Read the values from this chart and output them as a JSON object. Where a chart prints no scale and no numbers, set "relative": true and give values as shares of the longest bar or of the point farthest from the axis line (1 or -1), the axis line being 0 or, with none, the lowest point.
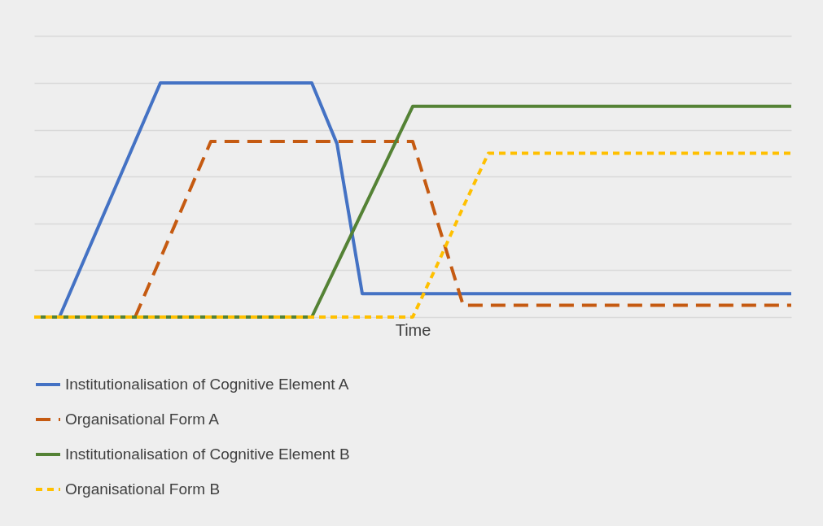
{
  "chart_data": {
    "type": "line",
    "relative": true,
    "xlabel": "Time",
    "grid": "y",
    "legend": "bottom",
    "marker": "none",
    "categories": [
      null,
      null,
      null,
      null,
      null,
      null,
      null,
      null,
      null,
      null,
      null,
      null,
      null,
      null,
      null,
      null,
      null,
      null,
      null,
      null,
      null,
      null,
      null,
      null,
      null,
      null,
      null,
      null,
      null,
      null,
      null
    ],
    "series": [
      {
        "name": "Institutionalisation of Cognitive Element A",
        "color": "#4472c4",
        "line_style": "solid",
        "values": [
          0,
          0,
          0.25,
          0.5,
          0.75,
          1,
          1,
          1,
          1,
          1,
          1,
          1,
          0.74,
          0.1,
          0.1,
          0.1,
          0.1,
          0.1,
          0.1,
          0.1,
          0.1,
          0.1,
          0.1,
          0.1,
          0.1,
          0.1,
          0.1,
          0.1,
          0.1,
          0.1,
          0.1
        ]
      },
      {
        "name": "Organisational Form A",
        "color": "#c55a11",
        "line_style": "dashed",
        "values": [
          null,
          null,
          null,
          null,
          0,
          0.25,
          0.5,
          0.75,
          0.75,
          0.75,
          0.75,
          0.75,
          0.75,
          0.75,
          0.75,
          0.75,
          0.4,
          0.05,
          0.05,
          0.05,
          0.05,
          0.05,
          0.05,
          0.05,
          0.05,
          0.05,
          0.05,
          0.05,
          0.05,
          0.05,
          0.05
        ]
      },
      {
        "name": "Institutionalisation of Cognitive Element B",
        "color": "#548235",
        "line_style": "solid",
        "values": [
          0,
          0,
          0,
          0,
          0,
          0,
          0,
          0,
          0,
          0,
          0,
          0,
          0.225,
          0.45,
          0.675,
          0.9,
          0.9,
          0.9,
          0.9,
          0.9,
          0.9,
          0.9,
          0.9,
          0.9,
          0.9,
          0.9,
          0.9,
          0.9,
          0.9,
          0.9,
          0.9
        ]
      },
      {
        "name": "Organisational Form B",
        "color": "#ffc000",
        "line_style": "dotted",
        "values": [
          0,
          0,
          0,
          0,
          0,
          0,
          0,
          0,
          0,
          0,
          0,
          0,
          0,
          0,
          0,
          0,
          0.23,
          0.47,
          0.7,
          0.7,
          0.7,
          0.7,
          0.7,
          0.7,
          0.7,
          0.7,
          0.7,
          0.7,
          0.7,
          0.7,
          0.7
        ]
      }
    ]
  }
}
